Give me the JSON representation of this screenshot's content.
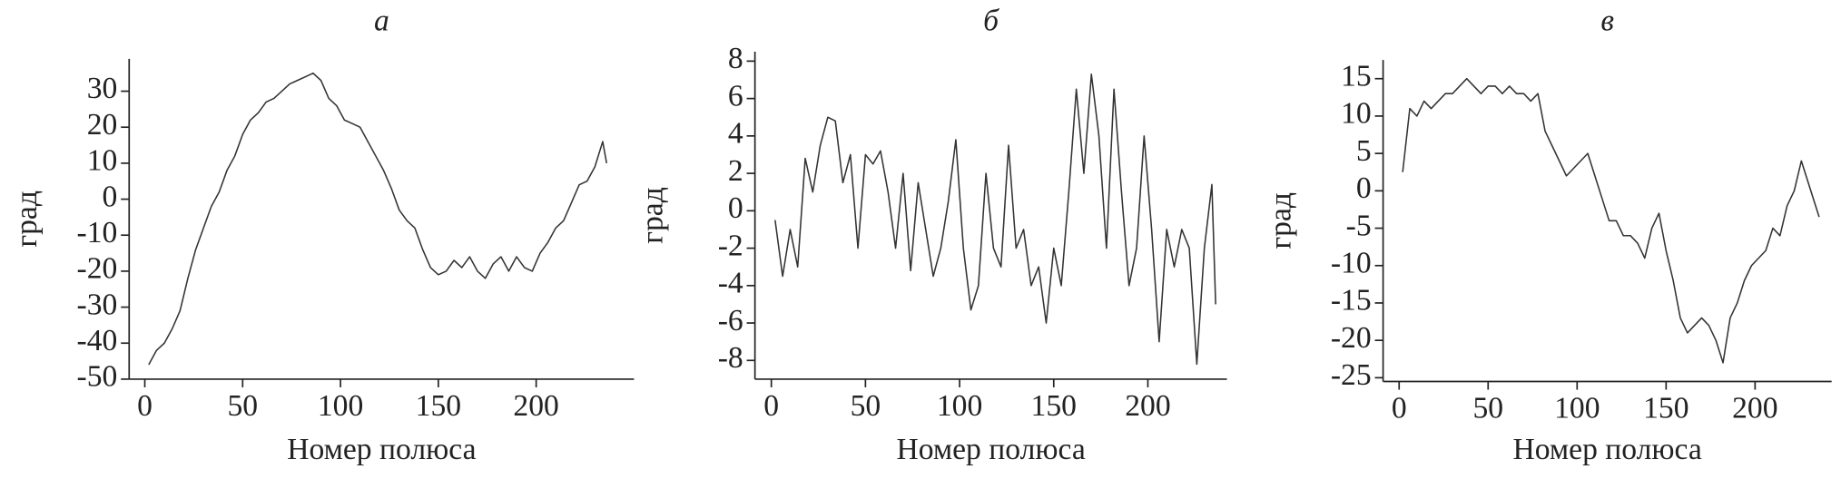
{
  "chart_data": [
    {
      "type": "line",
      "title": "а",
      "xlabel": "Номер полюса",
      "ylabel": "град",
      "color": "#333333",
      "x": [
        2,
        6,
        10,
        14,
        18,
        22,
        26,
        30,
        34,
        38,
        42,
        46,
        50,
        54,
        58,
        62,
        66,
        70,
        74,
        78,
        82,
        86,
        90,
        94,
        98,
        102,
        106,
        110,
        114,
        118,
        122,
        126,
        130,
        134,
        138,
        142,
        146,
        150,
        154,
        158,
        162,
        166,
        170,
        174,
        178,
        182,
        186,
        190,
        194,
        198,
        202,
        206,
        210,
        214,
        218,
        222,
        226,
        230,
        234,
        236
      ],
      "values": [
        -46,
        -42,
        -40,
        -36,
        -31,
        -22,
        -14,
        -8,
        -2,
        2,
        8,
        12,
        18,
        22,
        24,
        27,
        28,
        30,
        32,
        33,
        34,
        35,
        33,
        28,
        26,
        22,
        21,
        20,
        16,
        12,
        8,
        3,
        -3,
        -6,
        -8,
        -14,
        -19,
        -21,
        -20,
        -17,
        -19,
        -16,
        -20,
        -22,
        -18,
        -16,
        -20,
        -16,
        -19,
        -20,
        -15,
        -12,
        -8,
        -6,
        -1,
        4,
        5,
        9,
        16,
        10
      ],
      "xlim": [
        -8,
        250
      ],
      "ylim": [
        -50,
        39
      ],
      "xticks": [
        0,
        50,
        100,
        150,
        200
      ],
      "yticks": [
        -50,
        -40,
        -30,
        -20,
        -10,
        0,
        10,
        20,
        30
      ]
    },
    {
      "type": "line",
      "title": "б",
      "xlabel": "Номер полюса",
      "ylabel": "град",
      "color": "#333333",
      "x": [
        2,
        6,
        10,
        14,
        18,
        22,
        26,
        30,
        34,
        38,
        42,
        46,
        50,
        54,
        58,
        62,
        66,
        70,
        74,
        78,
        82,
        86,
        90,
        94,
        98,
        102,
        106,
        110,
        114,
        118,
        122,
        126,
        130,
        134,
        138,
        142,
        146,
        150,
        154,
        158,
        162,
        166,
        170,
        174,
        178,
        182,
        186,
        190,
        194,
        198,
        202,
        206,
        210,
        214,
        218,
        222,
        226,
        230,
        234,
        236
      ],
      "values": [
        -0.5,
        -3.5,
        -1,
        -3,
        2.8,
        1,
        3.5,
        5,
        4.8,
        1.5,
        3,
        -2,
        3,
        2.5,
        3.2,
        1,
        -2,
        2,
        -3.2,
        1.5,
        -1,
        -3.5,
        -2,
        0.5,
        3.8,
        -2,
        -5.3,
        -4,
        2,
        -2,
        -3,
        3.5,
        -2,
        -1,
        -4,
        -3,
        -6,
        -2,
        -4,
        1,
        6.5,
        2,
        7.3,
        4,
        -2,
        6.5,
        1,
        -4,
        -2,
        4,
        -1,
        -7,
        -1,
        -3,
        -1,
        -2,
        -8.2,
        -2,
        1.4,
        -5
      ],
      "xlim": [
        -8.7,
        242
      ],
      "ylim": [
        -9,
        8.5
      ],
      "xticks": [
        0,
        50,
        100,
        150,
        200
      ],
      "yticks": [
        -8,
        -6,
        -4,
        -2,
        0,
        2,
        4,
        6,
        8
      ]
    },
    {
      "type": "line",
      "title": "в",
      "xlabel": "Номер полюса",
      "ylabel": "град",
      "color": "#333333",
      "x": [
        2,
        6,
        10,
        14,
        18,
        22,
        26,
        30,
        34,
        38,
        42,
        46,
        50,
        54,
        58,
        62,
        66,
        70,
        74,
        78,
        82,
        86,
        90,
        94,
        98,
        102,
        106,
        110,
        114,
        118,
        122,
        126,
        130,
        134,
        138,
        142,
        146,
        150,
        154,
        158,
        162,
        166,
        170,
        174,
        178,
        182,
        186,
        190,
        194,
        198,
        202,
        206,
        210,
        214,
        218,
        222,
        226,
        230,
        234,
        236
      ],
      "values": [
        2.5,
        11,
        10,
        12,
        11,
        12,
        13,
        13,
        14,
        15,
        14,
        13,
        14,
        14,
        13,
        14,
        13,
        13,
        12,
        13,
        8,
        6,
        4,
        2,
        3,
        4,
        5,
        2,
        -1,
        -4,
        -4,
        -6,
        -6,
        -7,
        -9,
        -5,
        -3,
        -8,
        -12,
        -17,
        -19,
        -18,
        -17,
        -18,
        -20,
        -23,
        -17,
        -15,
        -12,
        -10,
        -9,
        -8,
        -5,
        -6,
        -2,
        0,
        4,
        1,
        -2,
        -3.5
      ],
      "xlim": [
        -9,
        243
      ],
      "ylim": [
        -25.5,
        17.5
      ],
      "xticks": [
        0,
        50,
        100,
        150,
        200
      ],
      "yticks": [
        -25,
        -20,
        -15,
        -10,
        -5,
        0,
        5,
        10,
        15
      ]
    }
  ]
}
